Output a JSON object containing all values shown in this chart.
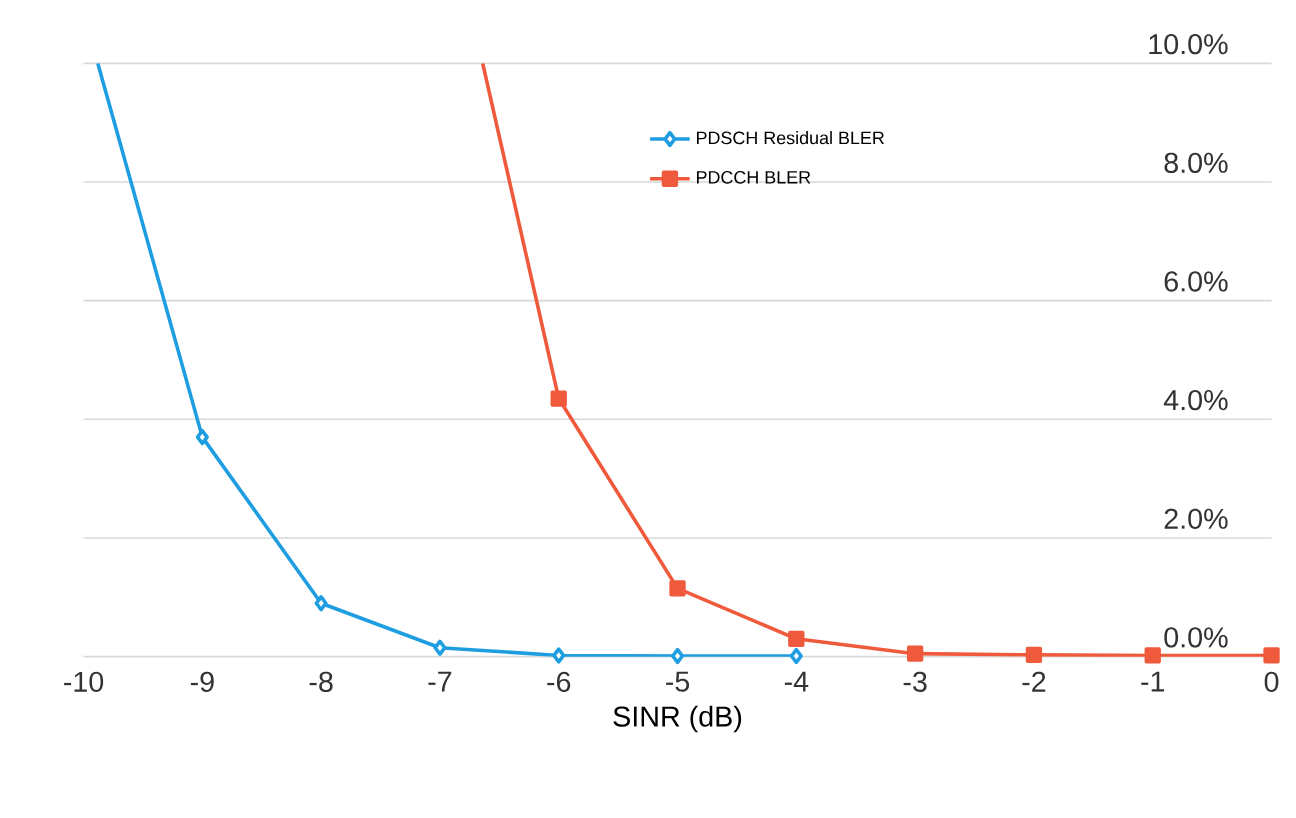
{
  "chart_data": {
    "type": "line",
    "xlabel": "SINR (dB)",
    "xlim": [
      -10,
      0
    ],
    "xticks": [
      -10,
      -9,
      -8,
      -7,
      -6,
      -5,
      -4,
      -3,
      -2,
      -1,
      0
    ],
    "ylim": [
      0,
      10
    ],
    "yticks": [
      {
        "value": 0,
        "label": "0.0%"
      },
      {
        "value": 2,
        "label": "2.0%"
      },
      {
        "value": 4,
        "label": "4.0%"
      },
      {
        "value": 6,
        "label": "6.0%"
      },
      {
        "value": 8,
        "label": "8.0%"
      },
      {
        "value": 10,
        "label": "10.0%"
      }
    ],
    "grid": "y",
    "legend": "top right",
    "line_style": "solid",
    "series": [
      {
        "name": "PDSCH Residual BLER",
        "color": "#1e9ee0",
        "marker": "diamond",
        "x": [
          -9.88,
          -9,
          -8,
          -7,
          -6,
          -5,
          -4
        ],
        "values": [
          10,
          3.7,
          0.9,
          0.15,
          0.02,
          0.01,
          0.01
        ]
      },
      {
        "name": "PDCCH BLER",
        "color": "#f05a3c",
        "marker": "square",
        "x": [
          -6.64,
          -6,
          -5,
          -4,
          -3,
          -2,
          -1,
          0
        ],
        "values": [
          10,
          4.35,
          1.15,
          0.3,
          0.05,
          0.03,
          0.02,
          0.02
        ]
      }
    ]
  }
}
